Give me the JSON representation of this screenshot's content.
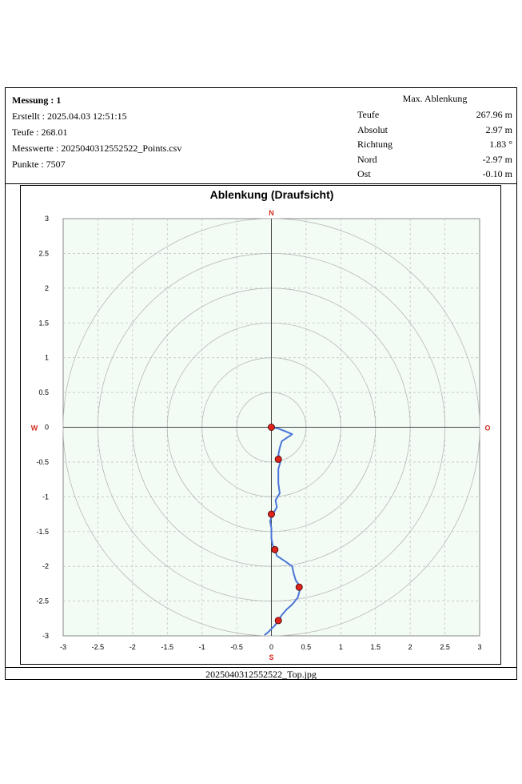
{
  "header": {
    "title": "Messung : 1",
    "created": "Erstellt : 2025.04.03 12:51:15",
    "depth": "Teufe : 268.01",
    "values_file": "Messwerte : 2025040312552522_Points.csv",
    "points": "Punkte : 7507"
  },
  "max_deflection": {
    "heading": "Max. Ablenkung",
    "rows": [
      {
        "label": "Teufe",
        "value": "267.96 m"
      },
      {
        "label": "Absolut",
        "value": "2.97 m"
      },
      {
        "label": "Richtung",
        "value": "1.83 °"
      },
      {
        "label": "Nord",
        "value": "-2.97 m"
      },
      {
        "label": "Ost",
        "value": "-0.10 m"
      }
    ]
  },
  "footer": {
    "filename": "2025040312552522_Top.jpg"
  },
  "colors": {
    "plot_bg": "#f2fcf5",
    "trace": "#4a74d8",
    "marker": "#e0241c",
    "compass": "#d42a1c"
  },
  "chart_data": {
    "type": "line",
    "title": "Ablenkung (Draufsicht)",
    "xlim": [
      -3,
      3
    ],
    "ylim": [
      -3,
      3
    ],
    "x_ticks": [
      "-3",
      "-2.5",
      "-2",
      "-1.5",
      "-1",
      "-0.5",
      "0",
      "0.5",
      "1",
      "1.5",
      "2",
      "2.5",
      "3"
    ],
    "y_ticks": [
      "3",
      "2.5",
      "2",
      "1.5",
      "1",
      "0.5",
      "0",
      "-0.5",
      "-1",
      "-1.5",
      "-2",
      "-2.5",
      "-3"
    ],
    "grid": true,
    "rings": [
      0.5,
      1,
      1.5,
      2,
      2.5,
      3
    ],
    "compass": {
      "north": "N",
      "south": "S",
      "west": "W",
      "east": "O"
    },
    "trace": {
      "x": [
        0,
        0.1,
        0.18,
        0.3,
        0.15,
        0.12,
        0.1,
        0.14,
        0.1,
        0.1,
        0.12,
        0.06,
        0.08,
        0.02,
        -0.02,
        0,
        0,
        0.02,
        0.05,
        0.08,
        0.2,
        0.3,
        0.32,
        0.35,
        0.42,
        0.38,
        0.3,
        0.22,
        0.15,
        0.1,
        0.05,
        0,
        -0.05,
        -0.1
      ],
      "y": [
        0,
        -0.02,
        -0.05,
        -0.1,
        -0.2,
        -0.3,
        -0.4,
        -0.46,
        -0.6,
        -0.8,
        -0.95,
        -1.05,
        -1.15,
        -1.25,
        -1.35,
        -1.45,
        -1.6,
        -1.7,
        -1.76,
        -1.85,
        -1.93,
        -2.0,
        -2.1,
        -2.2,
        -2.3,
        -2.45,
        -2.55,
        -2.62,
        -2.7,
        -2.78,
        -2.85,
        -2.9,
        -2.95,
        -2.99
      ]
    },
    "markers": [
      {
        "x": 0,
        "y": 0
      },
      {
        "x": 0.1,
        "y": -0.46
      },
      {
        "x": 0,
        "y": -1.25
      },
      {
        "x": 0.05,
        "y": -1.76
      },
      {
        "x": 0.4,
        "y": -2.3
      },
      {
        "x": 0.1,
        "y": -2.78
      }
    ]
  }
}
